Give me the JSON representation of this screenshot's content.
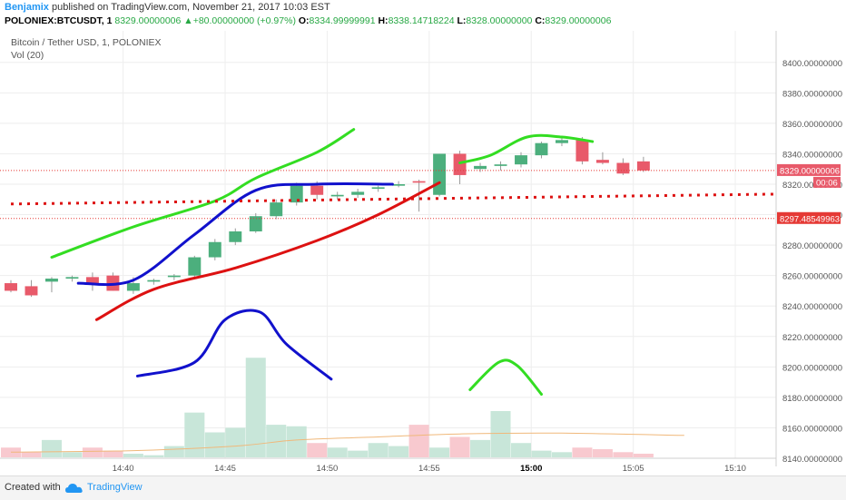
{
  "header": {
    "author": "Benjamix",
    "published_text": " published on TradingView.com, November 21, 2017 10:03 EST",
    "symbol": "POLONIEX:BTCUSDT, 1",
    "last": "8329.00000006",
    "change": "+80.00000000 (+0.97%)",
    "o_label": "O:",
    "o_value": "8334.99999991",
    "h_label": "H:",
    "h_value": "8338.14718224",
    "l_label": "L:",
    "l_value": "8328.00000000",
    "c_label": "C:",
    "c_value": "8329.00000006"
  },
  "footer": {
    "created": "Created with",
    "brand": "TradingView"
  },
  "colors": {
    "up": "#26a69a",
    "down": "#ef5350",
    "up_vol": "#c8e6d9",
    "down_vol": "#f8c9cf",
    "green_line": "#33dd22",
    "red_line": "#dd1111",
    "blue_line": "#1111cc",
    "ma_line": "#f0b87a"
  },
  "chart_data": {
    "type": "candlestick",
    "title": "Bitcoin / Tether USD, 1, POLONIEX",
    "indicator": "Vol (20)",
    "y_ticks": [
      "8400.00000000",
      "8380.00000000",
      "8360.00000000",
      "8340.00000000",
      "8320.00000000",
      "8300.00000000",
      "8280.00000000",
      "8260.00000000",
      "8240.00000000",
      "8220.00000000",
      "8200.00000000",
      "8180.00000000",
      "8160.00000000",
      "8140.00000000"
    ],
    "ylim": [
      8140,
      8410
    ],
    "x_ticks": [
      "14:40",
      "14:45",
      "14:50",
      "14:55",
      "15:00",
      "15:05",
      "15:10"
    ],
    "x_tick_minutes": [
      640,
      645,
      650,
      655,
      660,
      665,
      670
    ],
    "x_bold": "15:00",
    "xlim_minutes": [
      634.5,
      672
    ],
    "price_labels": {
      "last": "8329.00000006",
      "countdown": "00:06",
      "level": "8297.48549963"
    },
    "last_price": 8329.00000006,
    "level_price": 8297.48549963,
    "candles": [
      {
        "t": 634.5,
        "o": 8255,
        "h": 8257,
        "l": 8249,
        "c": 8250
      },
      {
        "t": 635.5,
        "o": 8253,
        "h": 8257,
        "l": 8246,
        "c": 8247
      },
      {
        "t": 636.5,
        "o": 8256,
        "h": 8259,
        "l": 8249,
        "c": 8258
      },
      {
        "t": 637.5,
        "o": 8258,
        "h": 8260,
        "l": 8256,
        "c": 8259
      },
      {
        "t": 638.5,
        "o": 8259,
        "h": 8262,
        "l": 8250,
        "c": 8254
      },
      {
        "t": 639.5,
        "o": 8260,
        "h": 8262,
        "l": 8250,
        "c": 8250
      },
      {
        "t": 640.5,
        "o": 8250,
        "h": 8259,
        "l": 8248,
        "c": 8255
      },
      {
        "t": 641.5,
        "o": 8256,
        "h": 8258,
        "l": 8254,
        "c": 8257
      },
      {
        "t": 642.5,
        "o": 8259,
        "h": 8261,
        "l": 8257,
        "c": 8260
      },
      {
        "t": 643.5,
        "o": 8260,
        "h": 8273,
        "l": 8259,
        "c": 8272
      },
      {
        "t": 644.5,
        "o": 8272,
        "h": 8284,
        "l": 8270,
        "c": 8282
      },
      {
        "t": 645.5,
        "o": 8282,
        "h": 8291,
        "l": 8280,
        "c": 8289
      },
      {
        "t": 646.5,
        "o": 8289,
        "h": 8301,
        "l": 8288,
        "c": 8299
      },
      {
        "t": 647.5,
        "o": 8299,
        "h": 8310,
        "l": 8297,
        "c": 8308
      },
      {
        "t": 648.5,
        "o": 8308,
        "h": 8321,
        "l": 8306,
        "c": 8319
      },
      {
        "t": 649.5,
        "o": 8319,
        "h": 8322,
        "l": 8310,
        "c": 8313
      },
      {
        "t": 650.5,
        "o": 8312,
        "h": 8315,
        "l": 8310,
        "c": 8313
      },
      {
        "t": 651.5,
        "o": 8313,
        "h": 8317,
        "l": 8311,
        "c": 8315
      },
      {
        "t": 652.5,
        "o": 8317,
        "h": 8319,
        "l": 8315,
        "c": 8318
      },
      {
        "t": 653.5,
        "o": 8319,
        "h": 8322,
        "l": 8318,
        "c": 8320
      },
      {
        "t": 654.5,
        "o": 8322,
        "h": 8323,
        "l": 8302,
        "c": 8321
      },
      {
        "t": 655.5,
        "o": 8313,
        "h": 8340,
        "l": 8312,
        "c": 8340
      },
      {
        "t": 656.5,
        "o": 8340,
        "h": 8342,
        "l": 8320,
        "c": 8326
      },
      {
        "t": 657.5,
        "o": 8330,
        "h": 8334,
        "l": 8328,
        "c": 8332
      },
      {
        "t": 658.5,
        "o": 8332,
        "h": 8335,
        "l": 8329,
        "c": 8333
      },
      {
        "t": 659.5,
        "o": 8333,
        "h": 8341,
        "l": 8331,
        "c": 8339
      },
      {
        "t": 660.5,
        "o": 8339,
        "h": 8348,
        "l": 8337,
        "c": 8347
      },
      {
        "t": 661.5,
        "o": 8347,
        "h": 8351,
        "l": 8345,
        "c": 8349
      },
      {
        "t": 662.5,
        "o": 8349,
        "h": 8351,
        "l": 8333,
        "c": 8335
      },
      {
        "t": 663.5,
        "o": 8336,
        "h": 8341,
        "l": 8333,
        "c": 8334
      },
      {
        "t": 664.5,
        "o": 8334,
        "h": 8337,
        "l": 8326,
        "c": 8327
      },
      {
        "t": 665.5,
        "o": 8335,
        "h": 8338,
        "l": 8328,
        "c": 8329
      }
    ],
    "volume_max": 8232,
    "volume": [
      {
        "t": 634.5,
        "v": 8147
      },
      {
        "t": 635.5,
        "v": 8144
      },
      {
        "t": 636.5,
        "v": 8152
      },
      {
        "t": 637.5,
        "v": 8144
      },
      {
        "t": 638.5,
        "v": 8147
      },
      {
        "t": 639.5,
        "v": 8145
      },
      {
        "t": 640.5,
        "v": 8143
      },
      {
        "t": 641.5,
        "v": 8142
      },
      {
        "t": 642.5,
        "v": 8148
      },
      {
        "t": 643.5,
        "v": 8170
      },
      {
        "t": 644.5,
        "v": 8157
      },
      {
        "t": 645.5,
        "v": 8160
      },
      {
        "t": 646.5,
        "v": 8206
      },
      {
        "t": 647.5,
        "v": 8162
      },
      {
        "t": 648.5,
        "v": 8161
      },
      {
        "t": 649.5,
        "v": 8150
      },
      {
        "t": 650.5,
        "v": 8147
      },
      {
        "t": 651.5,
        "v": 8145
      },
      {
        "t": 652.5,
        "v": 8150
      },
      {
        "t": 653.5,
        "v": 8148
      },
      {
        "t": 654.5,
        "v": 8162
      },
      {
        "t": 655.5,
        "v": 8147
      },
      {
        "t": 656.5,
        "v": 8154
      },
      {
        "t": 657.5,
        "v": 8152
      },
      {
        "t": 658.5,
        "v": 8171
      },
      {
        "t": 659.5,
        "v": 8150
      },
      {
        "t": 660.5,
        "v": 8145
      },
      {
        "t": 661.5,
        "v": 8144
      },
      {
        "t": 662.5,
        "v": 8147
      },
      {
        "t": 663.5,
        "v": 8146
      },
      {
        "t": 664.5,
        "v": 8144
      },
      {
        "t": 665.5,
        "v": 8143
      }
    ],
    "volume_ma": [
      {
        "t": 634.5,
        "v": 8144
      },
      {
        "t": 640.5,
        "v": 8145
      },
      {
        "t": 645.5,
        "v": 8148
      },
      {
        "t": 648.5,
        "v": 8152
      },
      {
        "t": 652.5,
        "v": 8154
      },
      {
        "t": 656.5,
        "v": 8156
      },
      {
        "t": 661.5,
        "v": 8156.5
      },
      {
        "t": 667.5,
        "v": 8155
      }
    ],
    "annotations": {
      "green_top": [
        [
          636.5,
          8272
        ],
        [
          640.5,
          8292
        ],
        [
          644.5,
          8309
        ],
        [
          646.5,
          8324
        ],
        [
          649.5,
          8341
        ],
        [
          651.3,
          8356
        ]
      ],
      "blue_mid": [
        [
          637.8,
          8255
        ],
        [
          640.5,
          8257
        ],
        [
          643.5,
          8287
        ],
        [
          646.5,
          8316
        ],
        [
          649.5,
          8320
        ],
        [
          653.2,
          8320
        ]
      ],
      "red_low": [
        [
          638.7,
          8231
        ],
        [
          641.5,
          8251
        ],
        [
          645.5,
          8265
        ],
        [
          649.5,
          8283
        ],
        [
          652.5,
          8300
        ],
        [
          655.5,
          8321
        ]
      ],
      "blue_hump": [
        [
          640.7,
          8194
        ],
        [
          643.5,
          8203
        ],
        [
          645.0,
          8231
        ],
        [
          646.7,
          8236
        ],
        [
          648.0,
          8215
        ],
        [
          650.2,
          8192
        ]
      ],
      "green_hump": [
        [
          657.0,
          8185
        ],
        [
          658.4,
          8203
        ],
        [
          659.3,
          8201
        ],
        [
          660.5,
          8182
        ]
      ],
      "green_arc": [
        [
          656.5,
          8334
        ],
        [
          658.0,
          8339
        ],
        [
          659.8,
          8351
        ],
        [
          661.5,
          8351
        ],
        [
          663.0,
          8348
        ]
      ],
      "dotted_level": [
        [
          634.5,
          8307
        ],
        [
          672,
          8313.5
        ]
      ]
    }
  }
}
